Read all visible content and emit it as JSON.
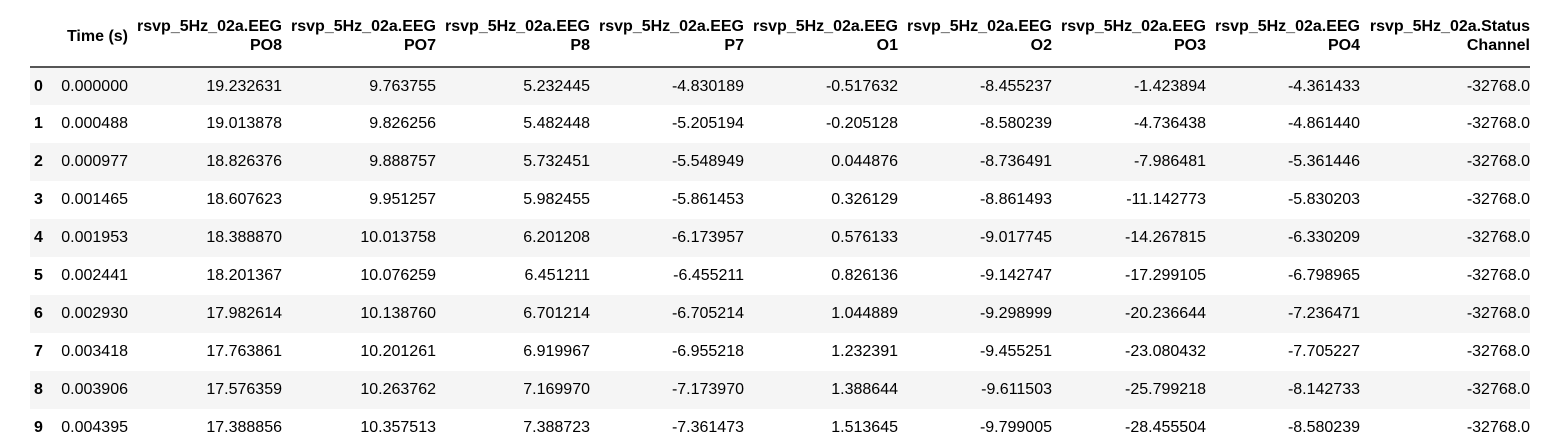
{
  "colors": {
    "background": "#ffffff",
    "stripe_row": "#f5f5f5",
    "header_border": "#565656",
    "text": "#000000"
  },
  "chart_data": {
    "type": "table",
    "title": "",
    "index_label": "",
    "index": [
      "0",
      "1",
      "2",
      "3",
      "4",
      "5",
      "6",
      "7",
      "8",
      "9"
    ],
    "columns": [
      "Time (s)",
      "rsvp_5Hz_02a.EEG PO8",
      "rsvp_5Hz_02a.EEG PO7",
      "rsvp_5Hz_02a.EEG P8",
      "rsvp_5Hz_02a.EEG P7",
      "rsvp_5Hz_02a.EEG O1",
      "rsvp_5Hz_02a.EEG O2",
      "rsvp_5Hz_02a.EEG PO3",
      "rsvp_5Hz_02a.EEG PO4",
      "rsvp_5Hz_02a.Status Channel"
    ],
    "column_header_lines": [
      [
        "Time (s)"
      ],
      [
        "rsvp_5Hz_02a.EEG",
        "PO8"
      ],
      [
        "rsvp_5Hz_02a.EEG",
        "PO7"
      ],
      [
        "rsvp_5Hz_02a.EEG",
        "P8"
      ],
      [
        "rsvp_5Hz_02a.EEG",
        "P7"
      ],
      [
        "rsvp_5Hz_02a.EEG",
        "O1"
      ],
      [
        "rsvp_5Hz_02a.EEG",
        "O2"
      ],
      [
        "rsvp_5Hz_02a.EEG",
        "PO3"
      ],
      [
        "rsvp_5Hz_02a.EEG",
        "PO4"
      ],
      [
        "rsvp_5Hz_02a.Status",
        "Channel"
      ]
    ],
    "rows": [
      [
        "0.000000",
        "19.232631",
        "9.763755",
        "5.232445",
        "-4.830189",
        "-0.517632",
        "-8.455237",
        "-1.423894",
        "-4.361433",
        "-32768.0"
      ],
      [
        "0.000488",
        "19.013878",
        "9.826256",
        "5.482448",
        "-5.205194",
        "-0.205128",
        "-8.580239",
        "-4.736438",
        "-4.861440",
        "-32768.0"
      ],
      [
        "0.000977",
        "18.826376",
        "9.888757",
        "5.732451",
        "-5.548949",
        "0.044876",
        "-8.736491",
        "-7.986481",
        "-5.361446",
        "-32768.0"
      ],
      [
        "0.001465",
        "18.607623",
        "9.951257",
        "5.982455",
        "-5.861453",
        "0.326129",
        "-8.861493",
        "-11.142773",
        "-5.830203",
        "-32768.0"
      ],
      [
        "0.001953",
        "18.388870",
        "10.013758",
        "6.201208",
        "-6.173957",
        "0.576133",
        "-9.017745",
        "-14.267815",
        "-6.330209",
        "-32768.0"
      ],
      [
        "0.002441",
        "18.201367",
        "10.076259",
        "6.451211",
        "-6.455211",
        "0.826136",
        "-9.142747",
        "-17.299105",
        "-6.798965",
        "-32768.0"
      ],
      [
        "0.002930",
        "17.982614",
        "10.138760",
        "6.701214",
        "-6.705214",
        "1.044889",
        "-9.298999",
        "-20.236644",
        "-7.236471",
        "-32768.0"
      ],
      [
        "0.003418",
        "17.763861",
        "10.201261",
        "6.919967",
        "-6.955218",
        "1.232391",
        "-9.455251",
        "-23.080432",
        "-7.705227",
        "-32768.0"
      ],
      [
        "0.003906",
        "17.576359",
        "10.263762",
        "7.169970",
        "-7.173970",
        "1.388644",
        "-9.611503",
        "-25.799218",
        "-8.142733",
        "-32768.0"
      ],
      [
        "0.004395",
        "17.388856",
        "10.357513",
        "7.388723",
        "-7.361473",
        "1.513645",
        "-9.799005",
        "-28.455504",
        "-8.580239",
        "-32768.0"
      ]
    ]
  }
}
